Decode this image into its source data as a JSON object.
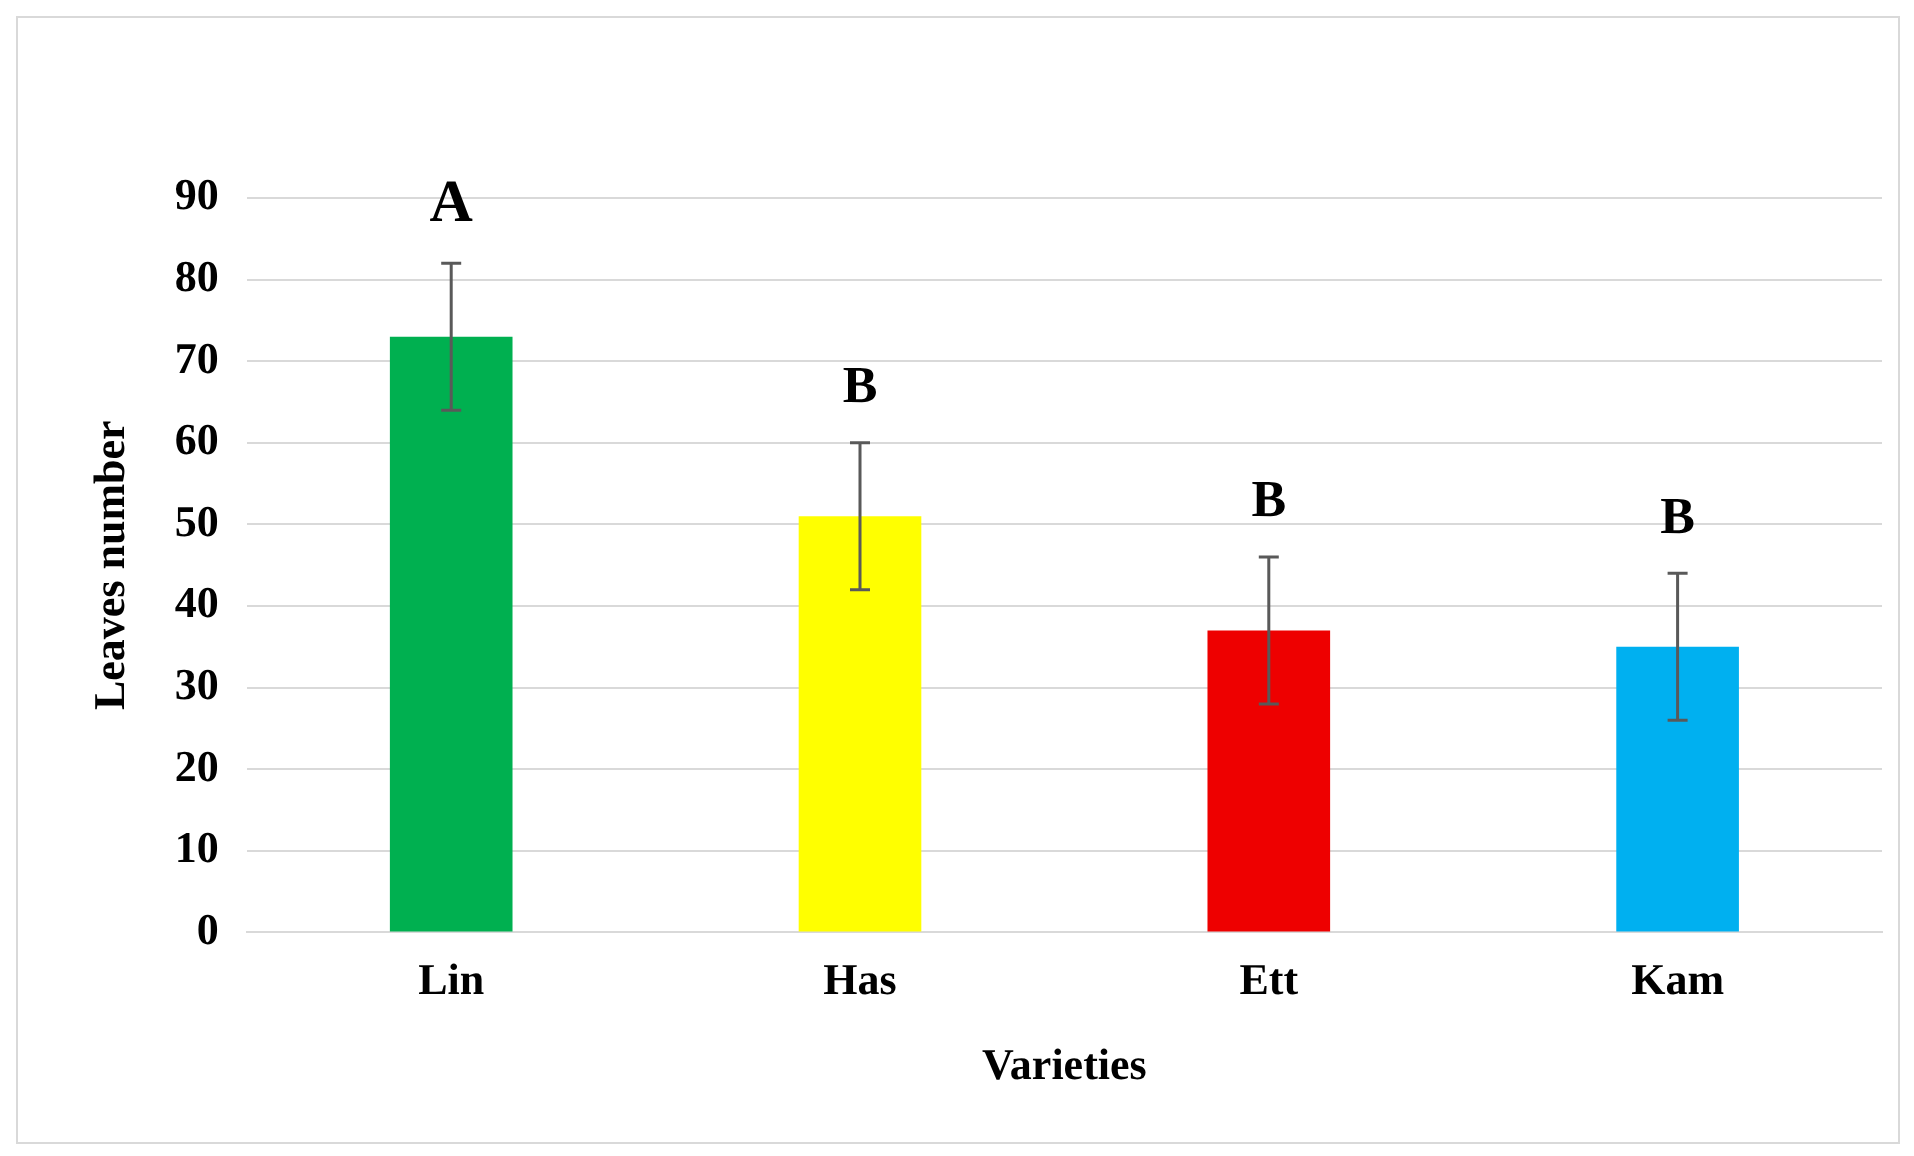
{
  "chart_data": {
    "type": "bar",
    "xlabel": "Varieties",
    "ylabel": "Leaves number",
    "categories": [
      "Lin",
      "Has",
      "Ett",
      "Kam"
    ],
    "values": [
      73,
      51,
      37,
      35
    ],
    "colors": [
      "#00b050",
      "#ffff00",
      "#ee0000",
      "#00b0f0"
    ],
    "errors": [
      9,
      9,
      9,
      9
    ],
    "ylim": [
      0,
      90
    ],
    "yticks": [
      0,
      10,
      20,
      30,
      40,
      50,
      60,
      70,
      80,
      90
    ],
    "grid": "y",
    "annotations": [
      "A",
      "B",
      "B",
      "B"
    ]
  }
}
